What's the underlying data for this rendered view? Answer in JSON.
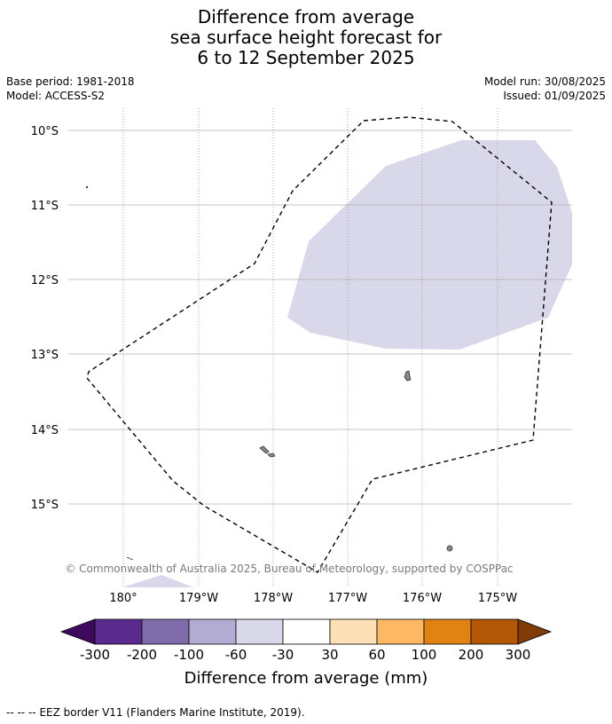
{
  "title": {
    "line1": "Difference from average",
    "line2": "sea surface height forecast for",
    "line3": "6 to 12 September 2025"
  },
  "meta_left": {
    "base_period": "Base period: 1981-2018",
    "model": "Model: ACCESS-S2"
  },
  "meta_right": {
    "model_run": "Model run: 30/08/2025",
    "issued": "Issued: 01/09/2025"
  },
  "map": {
    "lat_labels": [
      "10°S",
      "11°S",
      "12°S",
      "13°S",
      "14°S",
      "15°S"
    ],
    "lon_labels": [
      "180°",
      "179°W",
      "178°W",
      "177°W",
      "176°W",
      "175°W"
    ],
    "copyright": "© Commonwealth of Australia 2025, Bureau of Meteorology, supported by COSPPac",
    "anomaly_class_shown": "-60 to -30",
    "colors": {
      "gridline": "#b0b0b0",
      "land": "#888888",
      "eez": "#000000"
    }
  },
  "colorbar": {
    "tick_labels": [
      "-300",
      "-200",
      "-100",
      "-60",
      "-30",
      "30",
      "60",
      "100",
      "200",
      "300"
    ],
    "colors": [
      "#3f0a5e",
      "#5a2a8c",
      "#7f6dab",
      "#b2abd2",
      "#d8d8ea",
      "#ffffff",
      "#fee0b6",
      "#fdb863",
      "#e08214",
      "#b35806",
      "#7f3b08"
    ],
    "label": "Difference from average (mm)"
  },
  "footer": {
    "legend_symbol": "-- -- --",
    "legend_text": "EEZ border V11 (Flanders Marine Institute, 2019)."
  }
}
